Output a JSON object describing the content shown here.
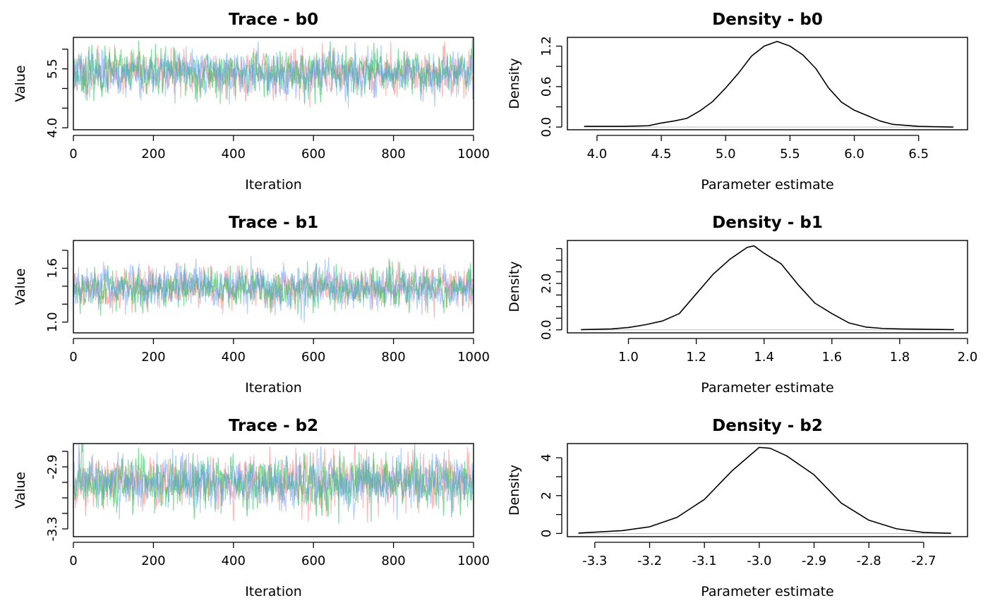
{
  "chart_data": [
    {
      "type": "line",
      "title": "Trace - b0",
      "xlabel": "Iteration",
      "ylabel": "Value",
      "xlim": [
        0,
        1000
      ],
      "ylim": [
        3.95,
        6.3
      ],
      "xticks": [
        "0",
        "200",
        "400",
        "600",
        "800",
        "1000"
      ],
      "xtick_values": [
        0,
        200,
        400,
        600,
        800,
        1000
      ],
      "yticks": [
        "4.0",
        "5.5"
      ],
      "ytick_values": [
        4.0,
        5.5
      ],
      "yminor": [
        4.5,
        5.0,
        6.0
      ],
      "n_iter": 1000,
      "mean": 5.4,
      "sd": 0.28,
      "series": [
        {
          "color": "#F8766D",
          "seed": 11
        },
        {
          "color": "#00BA38",
          "seed": 23
        },
        {
          "color": "#619CFF",
          "seed": 37
        }
      ]
    },
    {
      "type": "line",
      "title": "Density - b0",
      "xlabel": "Parameter estimate",
      "ylabel": "Density",
      "xlim": [
        3.77,
        6.88
      ],
      "ylim": [
        -0.04,
        1.33
      ],
      "xticks": [
        "4.0",
        "4.5",
        "5.0",
        "5.5",
        "6.0",
        "6.5"
      ],
      "xtick_values": [
        4.0,
        4.5,
        5.0,
        5.5,
        6.0,
        6.5
      ],
      "yticks": [
        "0.0",
        "0.6",
        "1.2"
      ],
      "ytick_values": [
        0.0,
        0.6,
        1.2
      ],
      "yminor": [
        0.3,
        0.9
      ],
      "x": [
        3.9,
        4.0,
        4.2,
        4.4,
        4.5,
        4.6,
        4.7,
        4.8,
        4.9,
        5.0,
        5.1,
        5.2,
        5.3,
        5.4,
        5.5,
        5.6,
        5.7,
        5.8,
        5.9,
        6.0,
        6.1,
        6.2,
        6.3,
        6.5,
        6.77
      ],
      "y": [
        0.01,
        0.01,
        0.01,
        0.02,
        0.06,
        0.09,
        0.13,
        0.24,
        0.38,
        0.58,
        0.8,
        1.05,
        1.2,
        1.27,
        1.2,
        1.07,
        0.87,
        0.58,
        0.37,
        0.25,
        0.17,
        0.09,
        0.04,
        0.01,
        0.0
      ]
    },
    {
      "type": "line",
      "title": "Trace - b1",
      "xlabel": "Iteration",
      "ylabel": "Value",
      "xlim": [
        0,
        1000
      ],
      "ylim": [
        0.88,
        1.91
      ],
      "xticks": [
        "0",
        "200",
        "400",
        "600",
        "800",
        "1000"
      ],
      "xtick_values": [
        0,
        200,
        400,
        600,
        800,
        1000
      ],
      "yticks": [
        "1.0",
        "1.6"
      ],
      "ytick_values": [
        1.0,
        1.6
      ],
      "yminor": [
        1.2,
        1.4,
        1.8
      ],
      "n_iter": 1000,
      "mean": 1.38,
      "sd": 0.11,
      "series": [
        {
          "color": "#F8766D",
          "seed": 41
        },
        {
          "color": "#00BA38",
          "seed": 53
        },
        {
          "color": "#619CFF",
          "seed": 67
        }
      ]
    },
    {
      "type": "line",
      "title": "Density - b1",
      "xlabel": "Parameter estimate",
      "ylabel": "Density",
      "xlim": [
        0.82,
        2.0
      ],
      "ylim": [
        -0.13,
        3.85
      ],
      "xticks": [
        "1.0",
        "1.2",
        "1.4",
        "1.6",
        "1.8",
        "2.0"
      ],
      "xtick_values": [
        1.0,
        1.2,
        1.4,
        1.6,
        1.8,
        2.0
      ],
      "yticks": [
        "0.0",
        "2.0"
      ],
      "ytick_values": [
        0.0,
        2.0
      ],
      "yminor": [
        0.5,
        1.0,
        1.5,
        2.5,
        3.0,
        3.5
      ],
      "x": [
        0.86,
        0.95,
        1.0,
        1.05,
        1.1,
        1.15,
        1.2,
        1.25,
        1.3,
        1.35,
        1.37,
        1.4,
        1.45,
        1.5,
        1.55,
        1.6,
        1.65,
        1.7,
        1.75,
        1.8,
        1.9,
        1.96
      ],
      "y": [
        0.01,
        0.04,
        0.1,
        0.22,
        0.38,
        0.7,
        1.55,
        2.4,
        3.05,
        3.55,
        3.62,
        3.3,
        2.85,
        1.95,
        1.15,
        0.7,
        0.3,
        0.12,
        0.06,
        0.04,
        0.02,
        0.01
      ]
    },
    {
      "type": "line",
      "title": "Trace - b2",
      "xlabel": "Iteration",
      "ylabel": "Value",
      "xlim": [
        0,
        1000
      ],
      "ylim": [
        -3.35,
        -2.75
      ],
      "xticks": [
        "0",
        "200",
        "400",
        "600",
        "800",
        "1000"
      ],
      "xtick_values": [
        0,
        200,
        400,
        600,
        800,
        1000
      ],
      "yticks": [
        "-3.3",
        "-2.9"
      ],
      "ytick_values": [
        -3.3,
        -2.9
      ],
      "yminor": [
        -3.2,
        -3.1,
        -3.0,
        -2.8
      ],
      "n_iter": 1000,
      "mean": -3.0,
      "sd": 0.085,
      "series": [
        {
          "color": "#F8766D",
          "seed": 71
        },
        {
          "color": "#00BA38",
          "seed": 83
        },
        {
          "color": "#619CFF",
          "seed": 97
        }
      ]
    },
    {
      "type": "line",
      "title": "Density - b2",
      "xlabel": "Parameter estimate",
      "ylabel": "Density",
      "xlim": [
        -3.35,
        -2.62
      ],
      "ylim": [
        -0.17,
        4.75
      ],
      "xticks": [
        "-3.3",
        "-3.2",
        "-3.1",
        "-3.0",
        "-2.9",
        "-2.8",
        "-2.7"
      ],
      "xtick_values": [
        -3.3,
        -3.2,
        -3.1,
        -3.0,
        -2.9,
        -2.8,
        -2.7
      ],
      "yticks": [
        "0",
        "2",
        "4"
      ],
      "ytick_values": [
        0,
        2,
        4
      ],
      "yminor": [
        1,
        3
      ],
      "x": [
        -3.33,
        -3.25,
        -3.2,
        -3.15,
        -3.1,
        -3.05,
        -3.0,
        -2.98,
        -2.95,
        -2.9,
        -2.85,
        -2.8,
        -2.75,
        -2.7,
        -2.65
      ],
      "y": [
        0.02,
        0.15,
        0.35,
        0.85,
        1.8,
        3.3,
        4.55,
        4.5,
        4.1,
        3.1,
        1.6,
        0.7,
        0.25,
        0.05,
        0.01
      ]
    }
  ]
}
